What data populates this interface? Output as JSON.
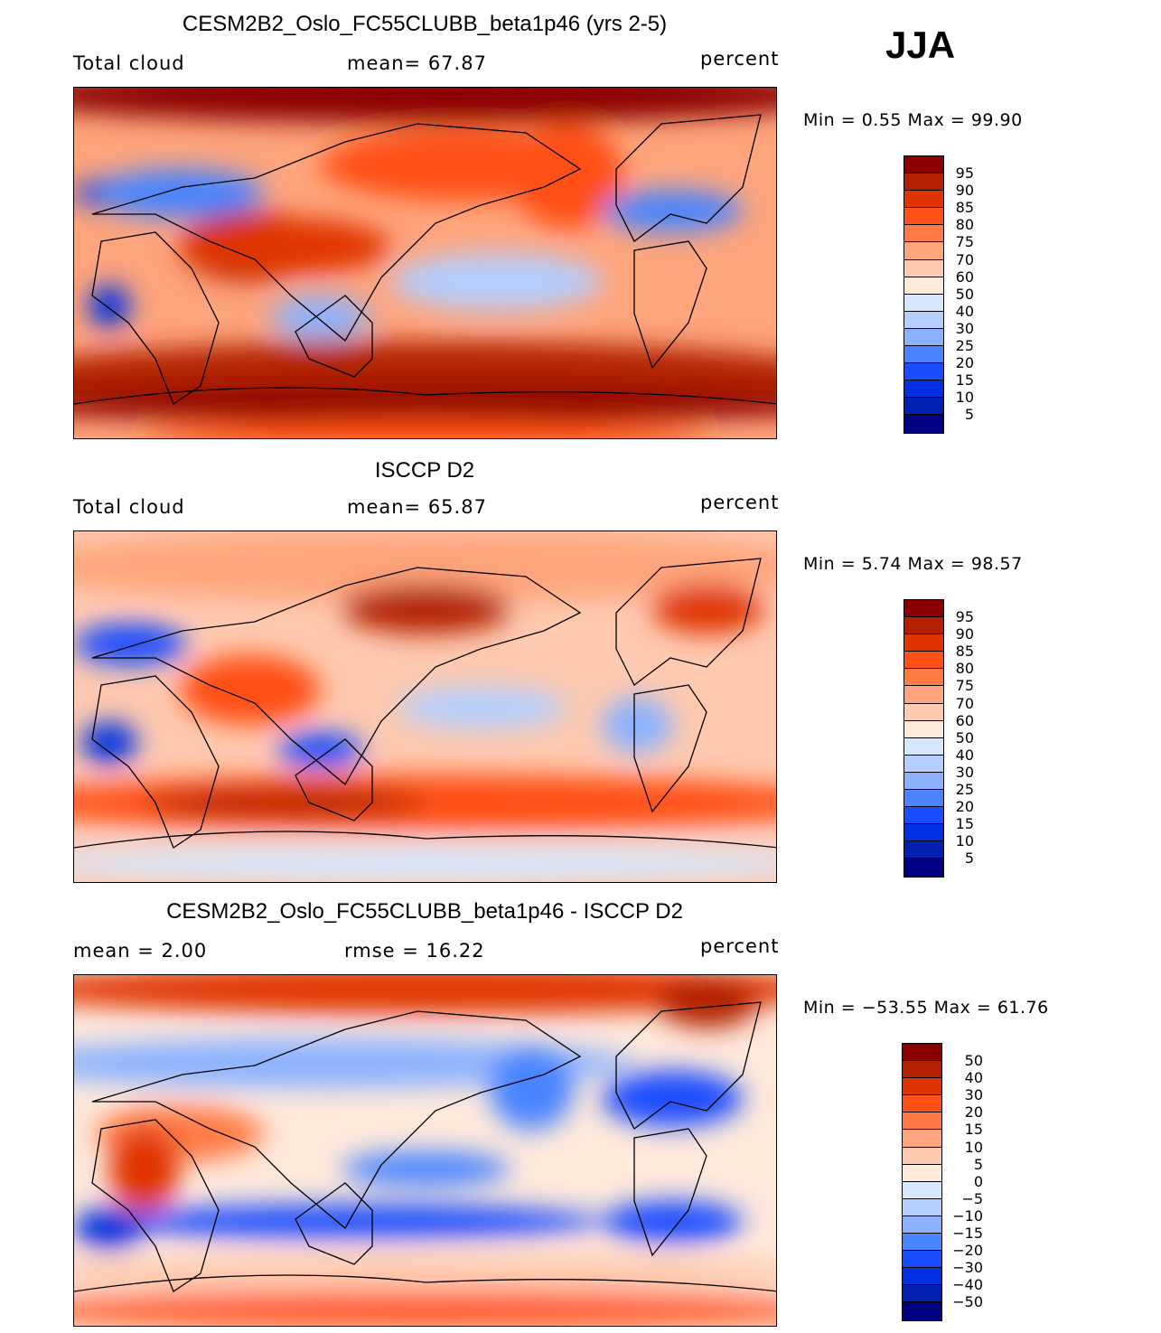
{
  "season": "JJA",
  "colors": [
    "#8a0000",
    "#b22000",
    "#e03400",
    "#ff5018",
    "#ff7a45",
    "#ffa57d",
    "#ffcab0",
    "#ffe9db",
    "#d6e8ff",
    "#b4cfff",
    "#8cb2ff",
    "#4a84ff",
    "#1a4dff",
    "#0030e0",
    "#0020b0",
    "#000080"
  ],
  "chart_data": [
    {
      "type": "heatmap",
      "title": "CESM2B2_Oslo_FC55CLUBB_beta1p46 (yrs 2-5)",
      "left_label": "Total cloud",
      "center_label": "mean=   67.87",
      "units": "percent",
      "min_max": "Min =    0.55  Max =   99.90",
      "levels": [
        "95",
        "90",
        "85",
        "80",
        "75",
        "70",
        "60",
        "50",
        "40",
        "30",
        "25",
        "20",
        "15",
        "10",
        "5"
      ]
    },
    {
      "type": "heatmap",
      "title": "ISCCP D2",
      "left_label": "Total cloud",
      "center_label": "mean=   65.87",
      "units": "percent",
      "min_max": "Min =    5.74  Max =   98.57",
      "levels": [
        "95",
        "90",
        "85",
        "80",
        "75",
        "70",
        "60",
        "50",
        "40",
        "30",
        "25",
        "20",
        "15",
        "10",
        "5"
      ]
    },
    {
      "type": "heatmap",
      "title": "CESM2B2_Oslo_FC55CLUBB_beta1p46 - ISCCP D2",
      "left_label": "mean  =    2.00",
      "center_label": "rmse  =   16.22",
      "units": "percent",
      "min_max": "Min = −53.55  Max =   61.76",
      "levels": [
        "50",
        "40",
        "30",
        "20",
        "15",
        "10",
        "5",
        "0",
        "−5",
        "−10",
        "−15",
        "−20",
        "−30",
        "−40",
        "−50"
      ]
    }
  ]
}
